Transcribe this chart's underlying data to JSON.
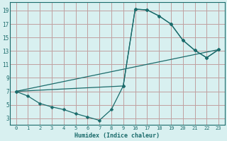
{
  "xlabel": "Humidex (Indice chaleur)",
  "bg_color": "#d8f0f0",
  "grid_color": "#c0a0a0",
  "line_color": "#1a6b6b",
  "tick_labels_x": [
    "0",
    "1",
    "2",
    "3",
    "4",
    "5",
    "6",
    "7",
    "8",
    "9",
    "16",
    "17",
    "18",
    "19",
    "20",
    "21",
    "22",
    "23"
  ],
  "yticks": [
    3,
    5,
    7,
    9,
    11,
    13,
    15,
    17,
    19
  ],
  "ylim": [
    2.0,
    20.2
  ],
  "line1_xi": [
    0,
    1,
    2,
    3,
    4,
    5,
    6,
    7,
    8,
    9,
    10,
    11,
    12,
    13,
    14,
    15,
    16,
    17
  ],
  "line1_y": [
    7.0,
    6.3,
    5.2,
    4.7,
    4.3,
    3.7,
    3.2,
    2.7,
    4.3,
    7.8,
    19.2,
    19.1,
    18.2,
    17.0,
    14.6,
    13.1,
    12.0,
    13.2
  ],
  "line2_xi": [
    0,
    9,
    10,
    11,
    12,
    13,
    14,
    15,
    16,
    17
  ],
  "line2_y": [
    7.0,
    7.8,
    19.2,
    19.1,
    18.2,
    17.0,
    14.6,
    13.1,
    12.0,
    13.2
  ],
  "line3_xi": [
    0,
    17
  ],
  "line3_y": [
    7.0,
    13.2
  ]
}
